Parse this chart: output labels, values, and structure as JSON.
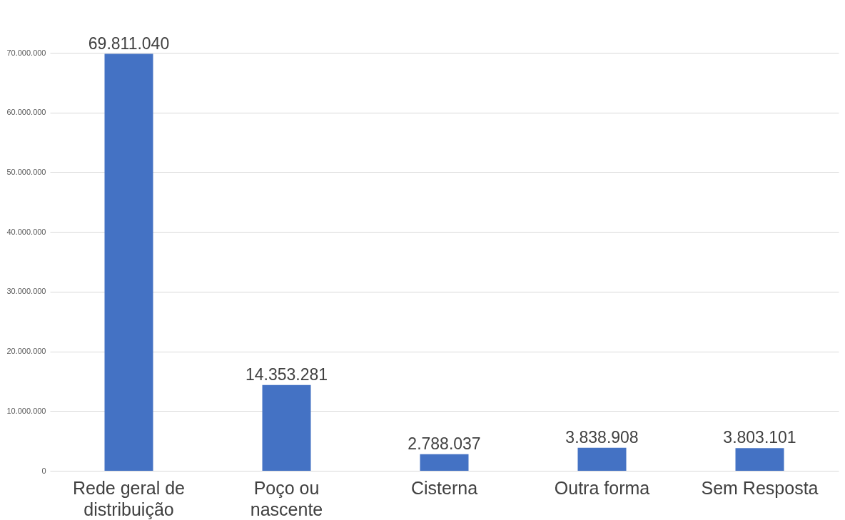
{
  "chart_data": {
    "type": "bar",
    "categories": [
      "Rede geral de distribuição",
      "Poço ou nascente",
      "Cisterna",
      "Outra forma",
      "Sem Resposta"
    ],
    "values": [
      69811040,
      14353281,
      2788037,
      3838908,
      3803101
    ],
    "value_labels": [
      "69.811.040",
      "14.353.281",
      "2.788.037",
      "3.838.908",
      "3.803.101"
    ],
    "color": "#4472c4",
    "ylim": [
      0,
      70000000
    ],
    "yticks": [
      {
        "value": 0,
        "label": "0"
      },
      {
        "value": 10000000,
        "label": "10.000.000"
      },
      {
        "value": 20000000,
        "label": "20.000.000"
      },
      {
        "value": 30000000,
        "label": "30.000.000"
      },
      {
        "value": 40000000,
        "label": "40.000.000"
      },
      {
        "value": 50000000,
        "label": "50.000.000"
      },
      {
        "value": 60000000,
        "label": "60.000.000"
      },
      {
        "value": 70000000,
        "label": "70.000.000"
      }
    ],
    "grid": "y"
  }
}
